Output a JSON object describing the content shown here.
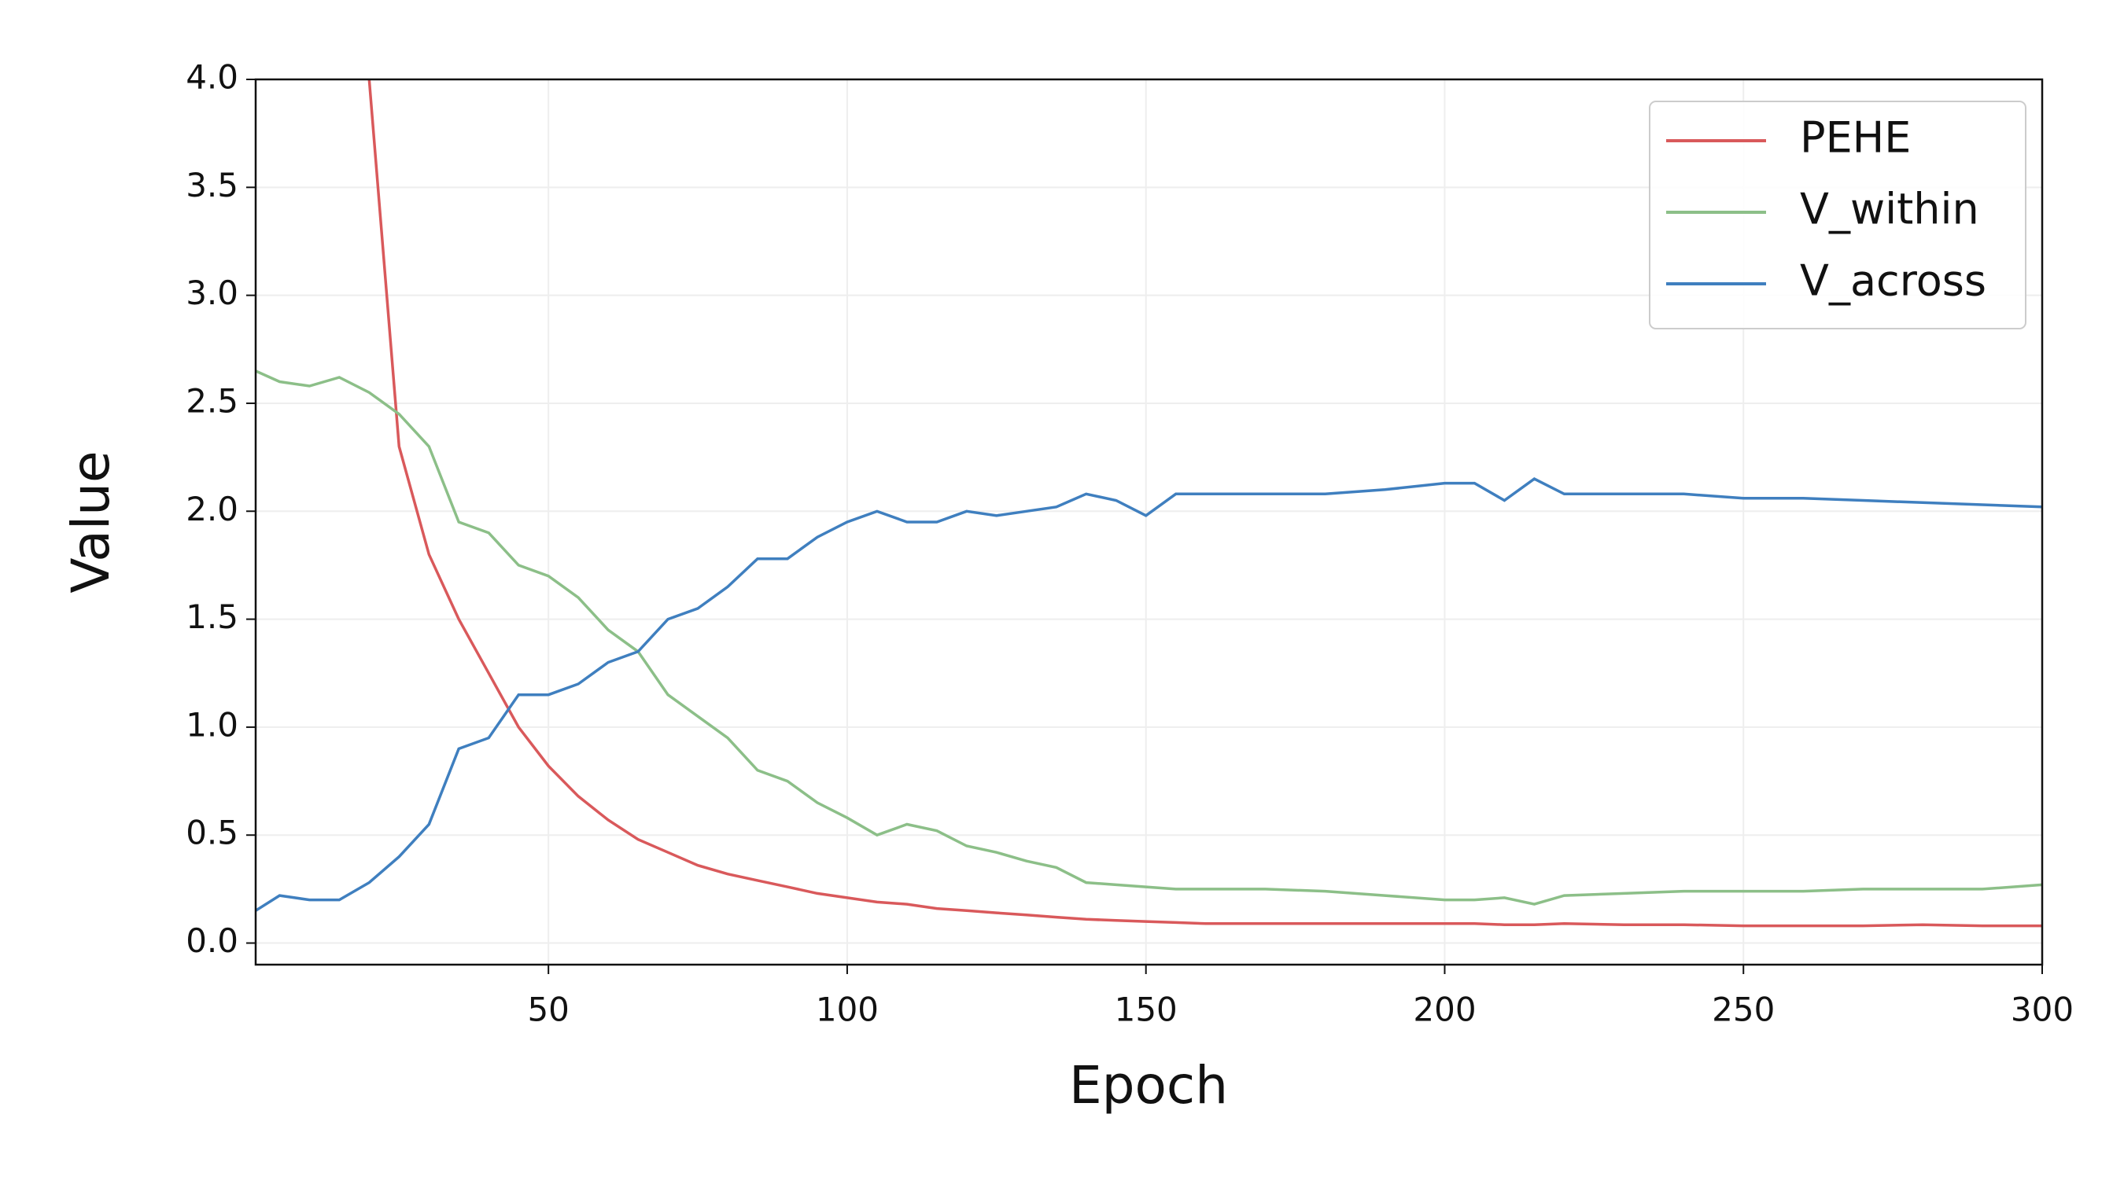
{
  "chart_data": {
    "type": "line",
    "x_label": "Epoch",
    "y_label": "Value",
    "x": [
      1,
      5,
      10,
      15,
      20,
      25,
      30,
      35,
      40,
      45,
      50,
      55,
      60,
      65,
      70,
      75,
      80,
      85,
      90,
      95,
      100,
      105,
      110,
      115,
      120,
      125,
      130,
      135,
      140,
      145,
      150,
      155,
      160,
      170,
      180,
      190,
      200,
      205,
      210,
      215,
      220,
      230,
      240,
      250,
      260,
      270,
      280,
      290,
      300
    ],
    "series": [
      {
        "name": "PEHE",
        "color": "#d9595b",
        "values": [
          null,
          null,
          null,
          null,
          4.0,
          2.3,
          1.8,
          1.5,
          1.25,
          1.0,
          0.82,
          0.68,
          0.57,
          0.48,
          0.42,
          0.36,
          0.32,
          0.29,
          0.26,
          0.23,
          0.21,
          0.19,
          0.18,
          0.16,
          0.15,
          0.14,
          0.13,
          0.12,
          0.11,
          0.105,
          0.1,
          0.095,
          0.09,
          0.09,
          0.09,
          0.09,
          0.09,
          0.09,
          0.085,
          0.085,
          0.09,
          0.085,
          0.085,
          0.08,
          0.08,
          0.08,
          0.085,
          0.08,
          0.08
        ]
      },
      {
        "name": "V_within",
        "color": "#8cbf88",
        "values": [
          2.65,
          2.6,
          2.58,
          2.62,
          2.55,
          2.45,
          2.3,
          1.95,
          1.9,
          1.75,
          1.7,
          1.6,
          1.45,
          1.35,
          1.15,
          1.05,
          0.95,
          0.8,
          0.75,
          0.65,
          0.58,
          0.5,
          0.55,
          0.52,
          0.45,
          0.42,
          0.38,
          0.35,
          0.28,
          0.27,
          0.26,
          0.25,
          0.25,
          0.25,
          0.24,
          0.22,
          0.2,
          0.2,
          0.21,
          0.18,
          0.22,
          0.23,
          0.24,
          0.24,
          0.24,
          0.25,
          0.25,
          0.25,
          0.27
        ]
      },
      {
        "name": "V_across",
        "color": "#3f7fbf",
        "values": [
          0.15,
          0.22,
          0.2,
          0.2,
          0.28,
          0.4,
          0.55,
          0.9,
          0.95,
          1.15,
          1.15,
          1.2,
          1.3,
          1.35,
          1.5,
          1.55,
          1.65,
          1.78,
          1.78,
          1.88,
          1.95,
          2.0,
          1.95,
          1.95,
          2.0,
          1.98,
          2.0,
          2.02,
          2.08,
          2.05,
          1.98,
          2.08,
          2.08,
          2.08,
          2.08,
          2.1,
          2.13,
          2.13,
          2.05,
          2.15,
          2.08,
          2.08,
          2.08,
          2.06,
          2.06,
          2.05,
          2.04,
          2.03,
          2.02
        ]
      }
    ],
    "xlim": [
      1,
      300
    ],
    "ylim": [
      -0.1,
      4.0
    ],
    "xticks": [
      50,
      100,
      150,
      200,
      250,
      300
    ],
    "yticks": [
      {
        "value": 0,
        "label": "0.0"
      },
      {
        "value": 0.5,
        "label": "0.5"
      },
      {
        "value": 1,
        "label": "1.0"
      },
      {
        "value": 1.5,
        "label": "1.5"
      },
      {
        "value": 2,
        "label": "2.0"
      },
      {
        "value": 2.5,
        "label": "2.5"
      },
      {
        "value": 3,
        "label": "3.0"
      },
      {
        "value": 3.5,
        "label": "3.5"
      },
      {
        "value": 4,
        "label": "4.0"
      }
    ],
    "grid": true,
    "legend": "upper right"
  }
}
